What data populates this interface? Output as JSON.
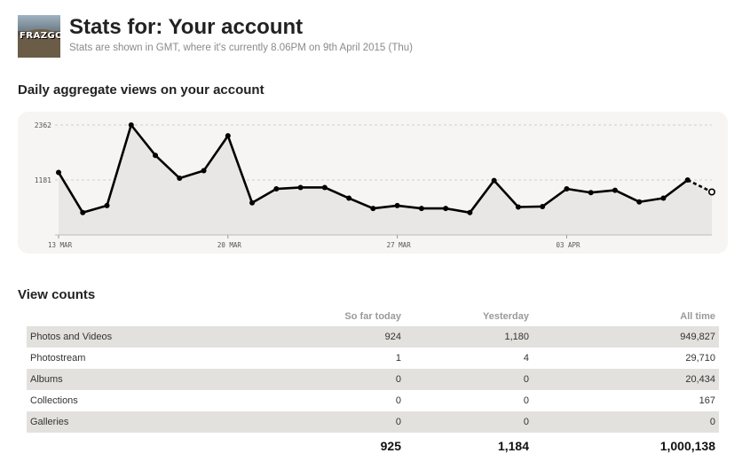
{
  "header": {
    "avatar_text": "FRAZGO",
    "title": "Stats for: Your account",
    "subtitle": "Stats are shown in GMT, where it's currently 8.06PM on 9th April 2015 (Thu)"
  },
  "chart_section": {
    "title": "Daily aggregate views on your account"
  },
  "chart_data": {
    "type": "line",
    "title": "",
    "x": [
      "13 Mar",
      "14 Mar",
      "15 Mar",
      "16 Mar",
      "17 Mar",
      "18 Mar",
      "19 Mar",
      "20 Mar",
      "21 Mar",
      "22 Mar",
      "23 Mar",
      "24 Mar",
      "25 Mar",
      "26 Mar",
      "27 Mar",
      "28 Mar",
      "29 Mar",
      "30 Mar",
      "31 Mar",
      "01 Apr",
      "02 Apr",
      "03 Apr",
      "04 Apr",
      "05 Apr",
      "06 Apr",
      "07 Apr",
      "08 Apr",
      "09 Apr"
    ],
    "xtick_labels": [
      "13 MAR",
      "20 MAR",
      "27 MAR",
      "03 APR"
    ],
    "yticks": [
      1181,
      2362
    ],
    "ylim": [
      0,
      2362
    ],
    "series": [
      {
        "values": [
          1344,
          480,
          630,
          2362,
          1710,
          1220,
          1380,
          2130,
          690,
          990,
          1020,
          1020,
          790,
          570,
          630,
          570,
          570,
          480,
          1170,
          600,
          610,
          990,
          910,
          960,
          710,
          790,
          1180,
          924
        ],
        "partial_last_point": true
      }
    ],
    "grid": true,
    "legend": "none"
  },
  "counts_section": {
    "title": "View counts"
  },
  "table": {
    "headers": [
      "",
      "So far today",
      "Yesterday",
      "All time"
    ],
    "rows": [
      [
        "Photos and Videos",
        "924",
        "1,180",
        "949,827"
      ],
      [
        "Photostream",
        "1",
        "4",
        "29,710"
      ],
      [
        "Albums",
        "0",
        "0",
        "20,434"
      ],
      [
        "Collections",
        "0",
        "0",
        "167"
      ],
      [
        "Galleries",
        "0",
        "0",
        "0"
      ]
    ],
    "totals": [
      "",
      "925",
      "1,184",
      "1,000,138"
    ]
  },
  "colors": {
    "line": "#000000",
    "area": "#e9e7e5",
    "row_shade": "#e3e1de",
    "gridline": "#cfcfcf"
  }
}
